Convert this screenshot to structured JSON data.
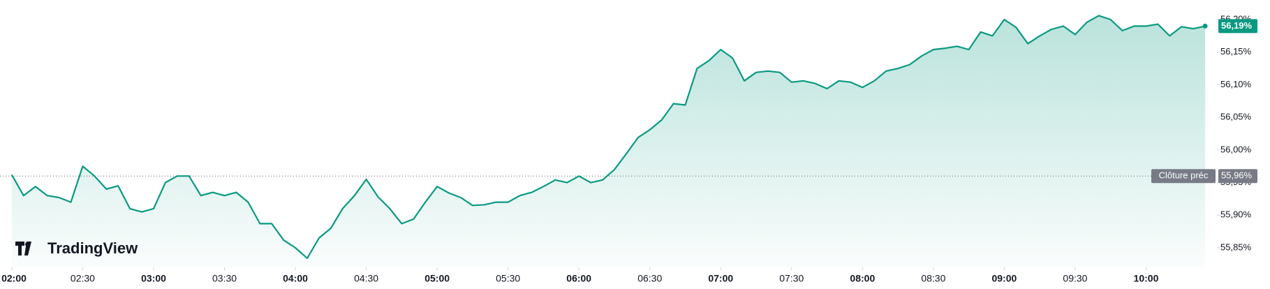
{
  "chart_data": {
    "type": "line",
    "x": [
      "02:00",
      "02:05",
      "02:10",
      "02:15",
      "02:20",
      "02:25",
      "02:30",
      "02:35",
      "02:40",
      "02:45",
      "02:50",
      "02:55",
      "03:00",
      "03:05",
      "03:10",
      "03:15",
      "03:20",
      "03:25",
      "03:30",
      "03:35",
      "03:40",
      "03:45",
      "03:50",
      "03:55",
      "04:00",
      "04:05",
      "04:10",
      "04:15",
      "04:20",
      "04:25",
      "04:30",
      "04:35",
      "04:40",
      "04:45",
      "04:50",
      "04:55",
      "05:00",
      "05:05",
      "05:10",
      "05:15",
      "05:20",
      "05:25",
      "05:30",
      "05:35",
      "05:40",
      "05:45",
      "05:50",
      "05:55",
      "06:00",
      "06:05",
      "06:10",
      "06:15",
      "06:20",
      "06:25",
      "06:30",
      "06:35",
      "06:40",
      "06:45",
      "06:50",
      "06:55",
      "07:00",
      "07:05",
      "07:10",
      "07:15",
      "07:20",
      "07:25",
      "07:30",
      "07:35",
      "07:40",
      "07:45",
      "07:50",
      "07:55",
      "08:00",
      "08:05",
      "08:10",
      "08:15",
      "08:20",
      "08:25",
      "08:30",
      "08:35",
      "08:40",
      "08:45",
      "08:50",
      "08:55",
      "09:00",
      "09:05",
      "09:10",
      "09:15",
      "09:20",
      "09:25",
      "09:30",
      "09:35",
      "09:40",
      "09:45",
      "09:50",
      "09:55",
      "10:00",
      "10:05",
      "10:10",
      "10:15",
      "10:20",
      "10:25"
    ],
    "series": [
      {
        "color": "#089981",
        "values": [
          55.962,
          55.93,
          55.944,
          55.93,
          55.927,
          55.92,
          55.975,
          55.96,
          55.94,
          55.945,
          55.91,
          55.905,
          55.91,
          55.95,
          55.96,
          55.96,
          55.93,
          55.935,
          55.93,
          55.935,
          55.92,
          55.887,
          55.887,
          55.862,
          55.85,
          55.834,
          55.865,
          55.88,
          55.91,
          55.93,
          55.955,
          55.928,
          55.91,
          55.887,
          55.894,
          55.92,
          55.944,
          55.934,
          55.927,
          55.915,
          55.916,
          55.92,
          55.92,
          55.93,
          55.935,
          55.944,
          55.954,
          55.95,
          55.96,
          55.95,
          55.954,
          55.97,
          55.994,
          56.019,
          56.031,
          56.046,
          56.071,
          56.069,
          56.125,
          56.137,
          56.154,
          56.141,
          56.106,
          56.119,
          56.121,
          56.119,
          56.104,
          56.106,
          56.102,
          56.094,
          56.106,
          56.104,
          56.096,
          56.106,
          56.121,
          56.125,
          56.131,
          56.144,
          56.154,
          56.156,
          56.159,
          56.154,
          56.181,
          56.175,
          56.2,
          56.188,
          56.163,
          56.175,
          56.185,
          56.19,
          56.177,
          56.196,
          56.206,
          56.2,
          56.183,
          56.19,
          56.19,
          56.193,
          56.175,
          56.189,
          56.186,
          56.19
        ]
      }
    ],
    "xlim": [
      "01:55",
      "10:30"
    ],
    "xticks": [
      "02:00",
      "02:30",
      "03:00",
      "03:30",
      "04:00",
      "04:30",
      "05:00",
      "05:30",
      "06:00",
      "06:30",
      "07:00",
      "07:30",
      "08:00",
      "08:30",
      "09:00",
      "09:30",
      "10:00"
    ],
    "ylim": [
      55.82,
      56.23
    ],
    "yticks": [
      {
        "value": 55.85,
        "label": "55,85%"
      },
      {
        "value": 55.9,
        "label": "55,90%"
      },
      {
        "value": 55.95,
        "label": "55,95%"
      },
      {
        "value": 56.0,
        "label": "56,00%"
      },
      {
        "value": 56.05,
        "label": "56,05%"
      },
      {
        "value": 56.1,
        "label": "56,10%"
      },
      {
        "value": 56.15,
        "label": "56,15%"
      },
      {
        "value": 56.2,
        "label": "56,20%"
      }
    ],
    "last_value": {
      "value": 56.19,
      "label": "56,19%",
      "color": "#089981"
    },
    "previous_close": {
      "name": "Clôture préc",
      "value": 55.96,
      "label": "55,96%",
      "color": "#787b86"
    },
    "watermark": "TradingView"
  }
}
